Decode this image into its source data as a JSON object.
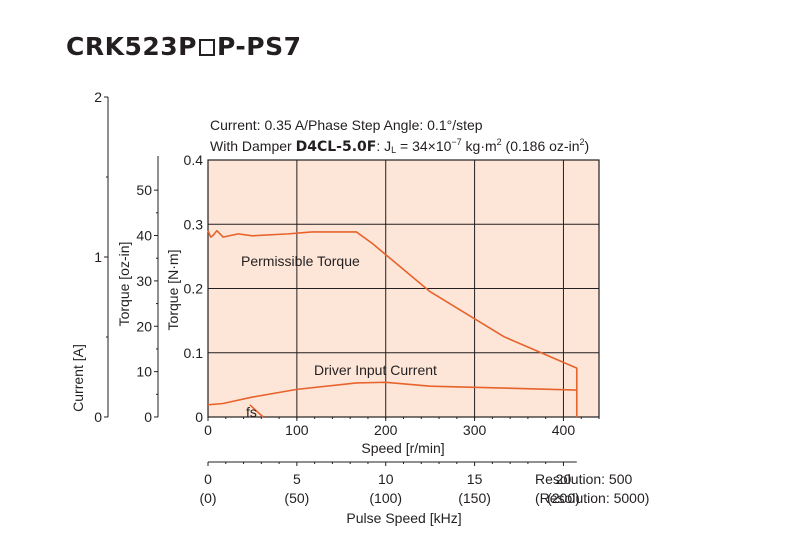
{
  "model": {
    "prefix": "CRK523P",
    "suffix": "P-PS7"
  },
  "conditions": {
    "line1": "Current: 0.35 A/Phase  Step Angle: 0.1°/step",
    "line2_pre": "With Damper ",
    "line2_bold": "D4CL-5.0F",
    "line2_mid": ": J",
    "line2_sub": "L",
    "line2_eq": " = 34×10",
    "line2_exp": "−7",
    "line2_unit": " kg·m",
    "line2_sq": "2",
    "line2_oz": " (0.186 oz-in",
    "line2_sq2": "2",
    "line2_close": ")"
  },
  "colors": {
    "plot_bg": "#fde6d8",
    "curve": "#e8632c",
    "grid": "#231f20"
  },
  "chart_data": {
    "type": "line",
    "xlabel": "Speed [r/min]",
    "xlim": [
      0,
      440
    ],
    "x_ticks": [
      "0",
      "100",
      "200",
      "300",
      "400"
    ],
    "torque_axis": {
      "label": "Torque [N·m]",
      "ylim": [
        0,
        0.4
      ],
      "ticks": [
        "0",
        "0.1",
        "0.2",
        "0.3",
        "0.4"
      ]
    },
    "ozin_axis": {
      "label": "Torque [oz-in]",
      "ticks": [
        "0",
        "10",
        "20",
        "30",
        "40",
        "50"
      ]
    },
    "current_axis": {
      "label": "Current [A]",
      "ticks": [
        "0",
        "1",
        "2"
      ]
    },
    "pulse_axis": {
      "label": "Pulse Speed [kHz]",
      "ticks": [
        "0",
        "5",
        "10",
        "15",
        "20"
      ],
      "ticks_alt": [
        "(0)",
        "(50)",
        "(100)",
        "(150)",
        "(200)"
      ],
      "resolution": "Resolution: 500",
      "resolution_alt": "(Resolution: 5000)"
    },
    "series": [
      {
        "name": "Permissible Torque",
        "x": [
          0,
          3,
          6,
          10,
          17,
          34,
          50,
          90,
          117,
          167,
          185,
          250,
          333,
          415,
          415
        ],
        "y": [
          0.29,
          0.28,
          0.283,
          0.29,
          0.28,
          0.285,
          0.282,
          0.285,
          0.288,
          0.288,
          0.27,
          0.195,
          0.125,
          0.076,
          0
        ]
      },
      {
        "name": "Driver Input Current",
        "x": [
          0,
          17,
          50,
          100,
          167,
          200,
          250,
          333,
          415
        ],
        "y": [
          0.019,
          0.021,
          0.031,
          0.043,
          0.053,
          0.054,
          0.048,
          0.045,
          0.042
        ]
      }
    ],
    "fs_label": "fs",
    "fs_line": {
      "x": [
        47,
        62
      ],
      "y": [
        0.019,
        0
      ]
    }
  }
}
